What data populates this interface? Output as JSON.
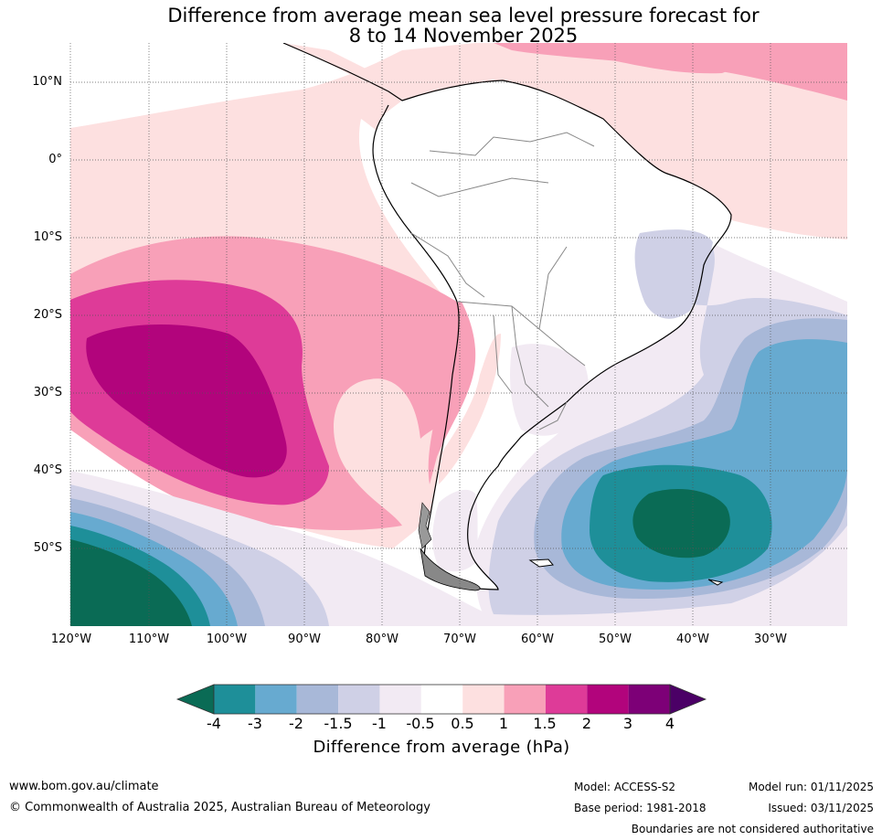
{
  "title_line1": "Difference from average mean sea level pressure forecast for",
  "title_line2": "8 to 14 November 2025",
  "lat_labels": [
    "10°N",
    "0°",
    "10°S",
    "20°S",
    "30°S",
    "40°S",
    "50°S"
  ],
  "lon_labels": [
    "120°W",
    "110°W",
    "100°W",
    "90°W",
    "80°W",
    "70°W",
    "60°W",
    "50°W",
    "40°W",
    "30°W"
  ],
  "colorbar": {
    "ticks": [
      "-4",
      "-3",
      "-2",
      "-1.5",
      "-1",
      "-0.5",
      "0.5",
      "1",
      "1.5",
      "2",
      "3",
      "4"
    ],
    "label": "Difference from average (hPa)",
    "colors": [
      "#0a6b55",
      "#1e8f99",
      "#67aad0",
      "#a8b8d8",
      "#cfd0e6",
      "#f2eaf3",
      "#ffffff",
      "#fde0e0",
      "#f8a0b8",
      "#de3b98",
      "#b2047c",
      "#7d0077",
      "#4b0066"
    ]
  },
  "footer": {
    "website": "www.bom.gov.au/climate",
    "copyright": "© Commonwealth of Australia 2025, Australian Bureau of Meteorology",
    "model": "Model: ACCESS-S2",
    "base_period": "Base period: 1981-2018",
    "model_run": "Model run: 01/11/2025",
    "issued": "Issued: 03/11/2025",
    "boundaries": "Boundaries are not considered authoritative"
  }
}
